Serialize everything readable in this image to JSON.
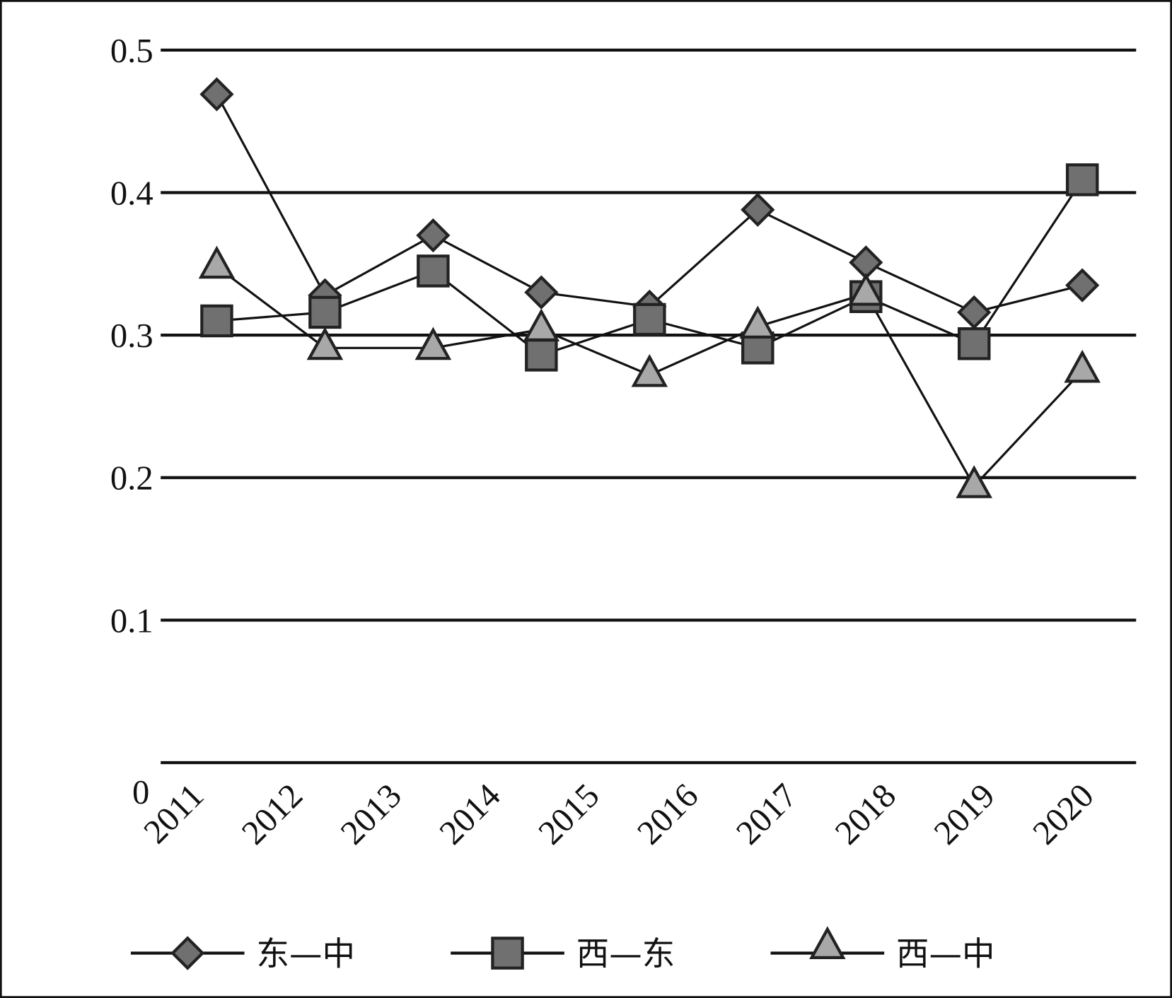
{
  "chart_data": {
    "type": "line",
    "categories": [
      "2011",
      "2012",
      "2013",
      "2014",
      "2015",
      "2016",
      "2017",
      "2018",
      "2019",
      "2020"
    ],
    "series": [
      {
        "name": "东—中",
        "color": "#707070",
        "marker": "diamond",
        "values": [
          0.469,
          0.328,
          0.37,
          0.33,
          0.32,
          0.388,
          0.351,
          0.316,
          0.335,
          null
        ]
      },
      {
        "name": "西—东",
        "color": "#707070",
        "marker": "square",
        "values": [
          0.31,
          0.316,
          0.345,
          0.286,
          0.311,
          0.291,
          0.327,
          0.294,
          0.409,
          null
        ]
      },
      {
        "name": "西—中",
        "color": "#a8a8a8",
        "marker": "triangle",
        "values": [
          0.348,
          0.291,
          0.291,
          0.304,
          0.272,
          0.306,
          0.329,
          0.194,
          0.275,
          null
        ]
      }
    ],
    "ylim": [
      0,
      0.5
    ],
    "yticks": [
      0,
      0.1,
      0.2,
      0.3,
      0.4,
      0.5
    ],
    "grid": true,
    "legend": "bottom"
  }
}
